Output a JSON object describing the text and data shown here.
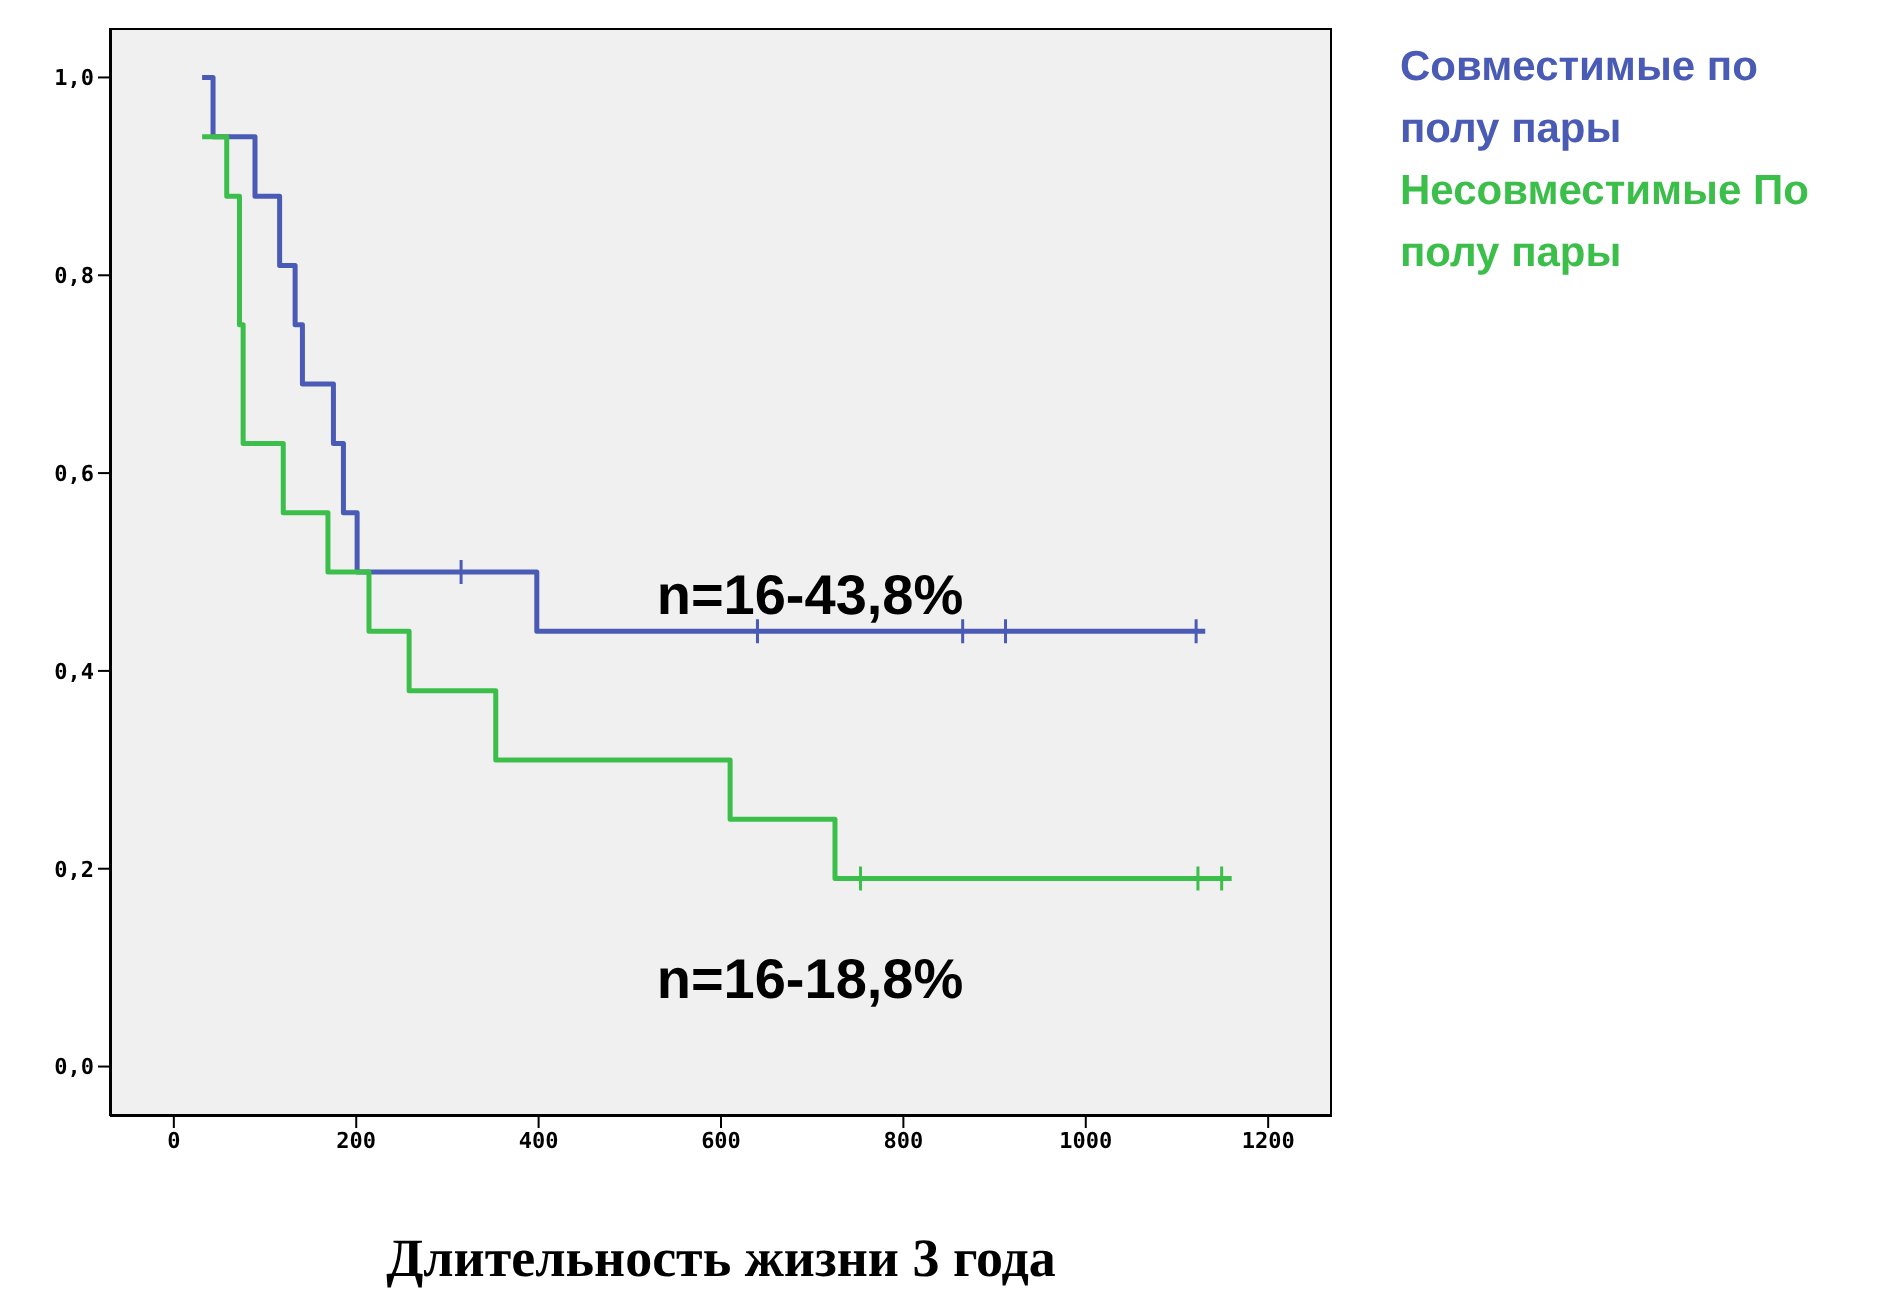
{
  "chart_data": {
    "type": "step",
    "xlabel": "Длительность жизни 3 года",
    "xlim": [
      -70,
      1270
    ],
    "xticks": [
      0,
      200,
      400,
      600,
      800,
      1000,
      1200
    ],
    "ylim": [
      -0.05,
      1.05
    ],
    "yticks": [
      {
        "value": 0,
        "label": "0,0"
      },
      {
        "value": 0.2,
        "label": "0,2"
      },
      {
        "value": 0.4,
        "label": "0,4"
      },
      {
        "value": 0.6,
        "label": "0,6"
      },
      {
        "value": 0.8,
        "label": "0,8"
      },
      {
        "value": 1,
        "label": "1,0"
      }
    ],
    "legend": "right",
    "annotations": [
      "n=16-43,8%",
      "n=16-18,8%"
    ],
    "series": [
      {
        "name": "Совместимые по полу пары",
        "color": "#4a5bb5",
        "marker": "none",
        "x": [
          31,
          43,
          89,
          116,
          133,
          141,
          175,
          186,
          201,
          398,
          1131
        ],
        "values": [
          1,
          0.94,
          0.88,
          0.81,
          0.75,
          0.69,
          0.63,
          0.56,
          0.5,
          0.44,
          0.44
        ]
      },
      {
        "type": "scatter",
        "color": "#4a5bb5",
        "marker": "cross",
        "x": [
          315,
          640,
          865,
          912,
          1121
        ],
        "values": [
          0.5,
          0.44,
          0.44,
          0.44,
          0.44
        ]
      },
      {
        "name": "Несовместимые По полу пары",
        "color": "#3cbf4a",
        "marker": "none",
        "x": [
          31,
          58,
          72,
          76,
          120,
          169,
          214,
          258,
          353,
          610,
          725,
          1160
        ],
        "values": [
          0.94,
          0.88,
          0.75,
          0.63,
          0.56,
          0.5,
          0.44,
          0.38,
          0.31,
          0.25,
          0.19,
          0.19
        ]
      },
      {
        "type": "scatter",
        "color": "#3cbf4a",
        "marker": "cross",
        "x": [
          753,
          1123,
          1149
        ],
        "values": [
          0.19,
          0.19,
          0.19
        ]
      }
    ]
  }
}
